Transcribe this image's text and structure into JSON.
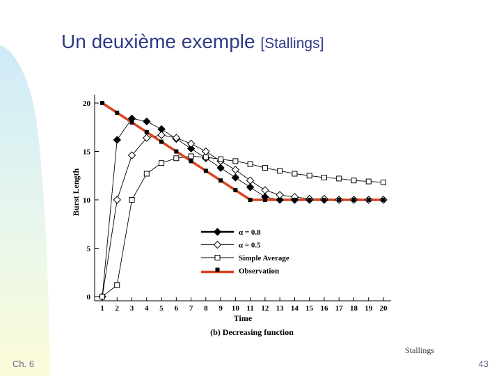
{
  "slide": {
    "title_main": "Un deuxième exemple ",
    "title_ref": "[Stallings]",
    "footer_left": "Ch. 6",
    "page_number": "43",
    "source": "Stallings"
  },
  "colors": {
    "title": "#2f3a86",
    "observation_line": "#d9431e",
    "series": "#000000"
  },
  "chart_data": {
    "type": "line",
    "xlabel": "Time",
    "ylabel": "Burst Length",
    "caption": "(b) Decreasing function",
    "x": [
      1,
      2,
      3,
      4,
      5,
      6,
      7,
      8,
      9,
      10,
      11,
      12,
      13,
      14,
      15,
      16,
      17,
      18,
      19,
      20
    ],
    "xlim": [
      1,
      20
    ],
    "ylim": [
      0,
      20
    ],
    "yticks": [
      0,
      5,
      10,
      15,
      20
    ],
    "legend_position": "center-right",
    "series": [
      {
        "name": "α = 0.8",
        "marker": "filled-diamond",
        "values": [
          0,
          16.2,
          18.4,
          18.1,
          17.3,
          16.3,
          15.3,
          14.3,
          13.3,
          12.3,
          11.3,
          10.3,
          10.0,
          10.0,
          10.0,
          10.0,
          10.0,
          10.0,
          10.0,
          10.0
        ]
      },
      {
        "name": "α = 0.5",
        "marker": "open-diamond",
        "values": [
          0,
          10.0,
          14.6,
          16.4,
          16.7,
          16.4,
          15.8,
          15.0,
          14.0,
          13.1,
          12.0,
          11.0,
          10.5,
          10.3,
          10.1,
          10.1,
          10.0,
          10.0,
          10.0,
          10.0
        ]
      },
      {
        "name": "Simple Average",
        "marker": "open-square",
        "values": [
          0,
          1.2,
          10.0,
          12.7,
          13.8,
          14.3,
          14.5,
          14.4,
          14.2,
          14.0,
          13.7,
          13.3,
          13.0,
          12.7,
          12.5,
          12.3,
          12.2,
          12.0,
          11.9,
          11.8
        ]
      },
      {
        "name": "Observation",
        "marker": "filled-square",
        "values": [
          20,
          19.0,
          18.0,
          17.0,
          16.0,
          15.0,
          14.0,
          13.0,
          12.0,
          11.0,
          10.0,
          10.0,
          10.0,
          10.0,
          10.0,
          10.0,
          10.0,
          10.0,
          10.0,
          10.0
        ]
      }
    ]
  }
}
